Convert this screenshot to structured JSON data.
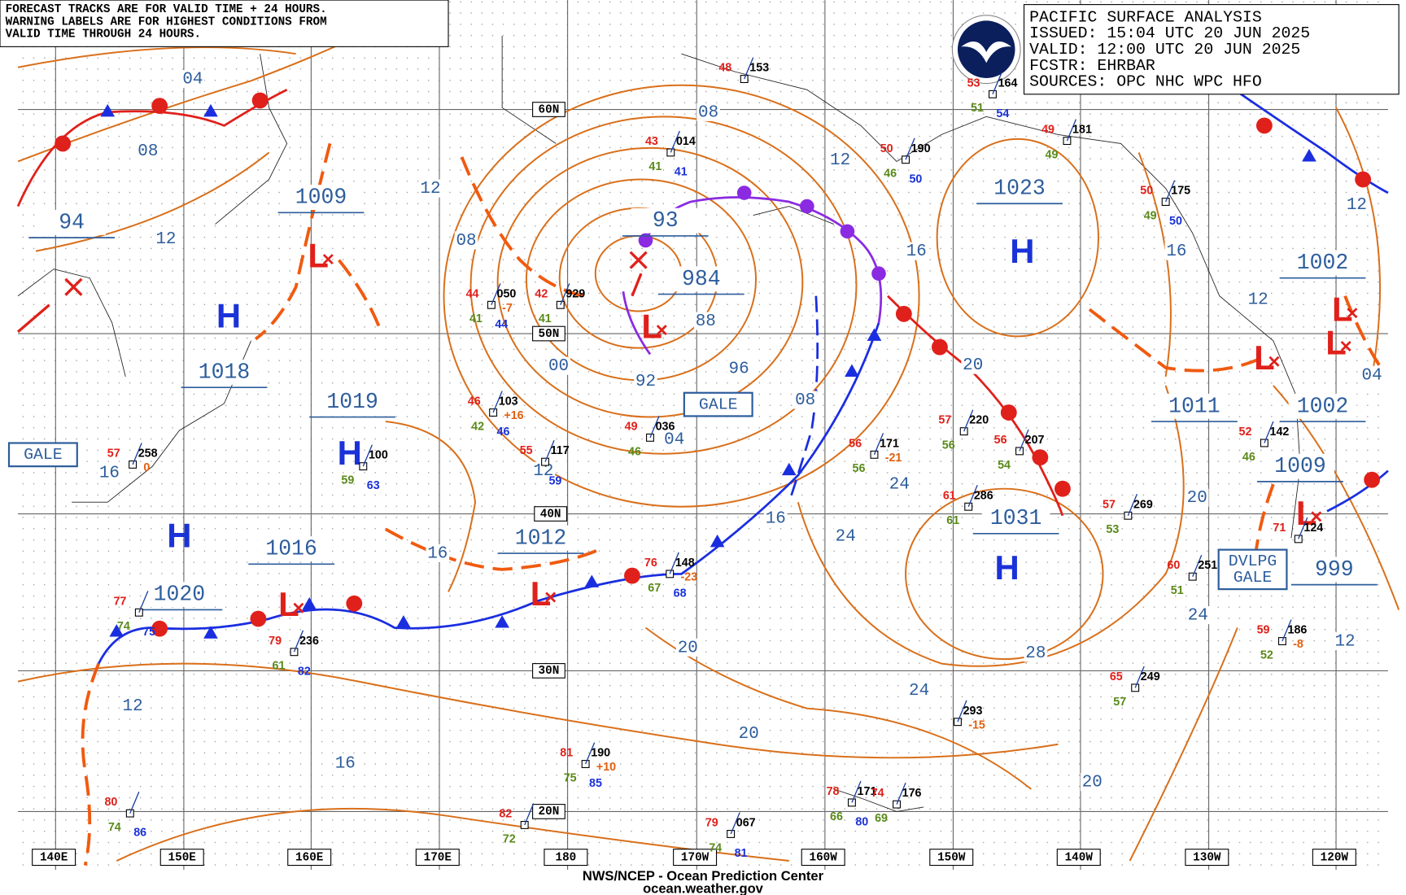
{
  "note_lines": [
    "FORECAST TRACKS ARE FOR VALID TIME + 24 HOURS.",
    "WARNING LABELS ARE FOR HIGHEST CONDITIONS FROM",
    "VALID TIME THROUGH 24 HOURS."
  ],
  "info_lines": [
    "PACIFIC SURFACE ANALYSIS",
    "ISSUED: 15:04 UTC 20 JUN 2025",
    "VALID:  12:00 UTC 20 JUN 2025",
    "FCSTR:  EHRBAR",
    "SOURCES: OPC NHC WPC HFO"
  ],
  "footer_lines": [
    "NWS/NCEP - Ocean Prediction Center",
    "ocean.weather.gov"
  ],
  "latitude_labels": [
    "60N",
    "50N",
    "40N",
    "30N",
    "20N"
  ],
  "longitude_labels": [
    "140E",
    "150E",
    "160E",
    "170E",
    "180",
    "170W",
    "160W",
    "150W",
    "140W",
    "130W",
    "120W"
  ],
  "center_pressures": [
    "1009",
    "94",
    "1018",
    "1019",
    "1016",
    "1020",
    "93",
    "984",
    "1012",
    "1023",
    "1031",
    "1011",
    "1002",
    "1002",
    "1009",
    "999"
  ],
  "center_symbols": [
    "H",
    "H",
    "H",
    "H",
    "H",
    "L",
    "L",
    "L",
    "L",
    "L",
    "L",
    "L",
    "L"
  ],
  "isobar_labels": [
    "04",
    "08",
    "12",
    "12",
    "08",
    "08",
    "12",
    "16",
    "00",
    "92",
    "96",
    "88",
    "04",
    "12",
    "08",
    "20",
    "16",
    "16",
    "24",
    "24",
    "24",
    "20",
    "28",
    "24",
    "20",
    "20",
    "16",
    "12",
    "20",
    "12",
    "16",
    "12",
    "04",
    "12",
    "16"
  ],
  "warnings": [
    [
      "GALE"
    ],
    [
      "GALE"
    ],
    [
      "DVLPG",
      "GALE"
    ]
  ],
  "stations": [
    {
      "t": "48",
      "p": "153"
    },
    {
      "t": "53",
      "p": "164",
      "d": "51",
      "s": "54"
    },
    {
      "t": "43",
      "p": "014",
      "d": "41",
      "s": "41"
    },
    {
      "t": "49",
      "p": "181",
      "d": "49"
    },
    {
      "t": "50",
      "p": "190",
      "d": "46",
      "s": "50"
    },
    {
      "t": "50",
      "p": "175",
      "d": "49",
      "s": "50"
    },
    {
      "t": "44",
      "p": "050",
      "d": "41",
      "s": "44",
      "tend": "-7"
    },
    {
      "t": "42",
      "p": "929",
      "d": "41"
    },
    {
      "t": "46",
      "p": "103",
      "d": "42",
      "s": "46",
      "tend": "+16"
    },
    {
      "t": "49",
      "p": "036",
      "d": "46"
    },
    {
      "t": "55",
      "p": "117",
      "s": "59"
    },
    {
      "t": "57",
      "p": "258",
      "tend": "0"
    },
    {
      "t": "57",
      "p": "220",
      "d": "56"
    },
    {
      "t": "56",
      "p": "171",
      "d": "56",
      "tend": "-21"
    },
    {
      "t": "56",
      "p": "207",
      "d": "54"
    },
    {
      "t": "61",
      "p": "286",
      "d": "61"
    },
    {
      "t": "57",
      "p": "269",
      "d": "53"
    },
    {
      "t": "60",
      "p": "251",
      "d": "51"
    },
    {
      "t": "76",
      "p": "148",
      "d": "67",
      "s": "68",
      "tend": "-23"
    },
    {
      "t": "79",
      "p": "236",
      "d": "61",
      "s": "82"
    },
    {
      "t": "81",
      "p": "190",
      "d": "75",
      "s": "85",
      "tend": "+10"
    },
    {
      "t": "78",
      "p": "171",
      "d": "66",
      "s": "80"
    },
    {
      "t": "74",
      "p": "176",
      "d": "69"
    },
    {
      "p": "293",
      "tend": "-15"
    },
    {
      "t": "65",
      "p": "249",
      "d": "57"
    },
    {
      "t": "59",
      "p": "186",
      "d": "52",
      "tend": "-8"
    },
    {
      "t": "80",
      "d": "74",
      "s": "86"
    },
    {
      "t": "82",
      "d": "72"
    },
    {
      "t": "79",
      "p": "067",
      "d": "74",
      "s": "81"
    },
    {
      "t": "52",
      "p": "142",
      "d": "46"
    },
    {
      "t": "77",
      "d": "74",
      "s": "75"
    },
    {
      "p": "100",
      "d": "59",
      "s": "63"
    },
    {
      "t": "71",
      "p": "124"
    }
  ]
}
